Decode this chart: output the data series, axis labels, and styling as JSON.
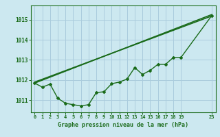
{
  "title": "Graphe pression niveau de la mer (hPa)",
  "background_color": "#cce8f0",
  "grid_color": "#aaccdd",
  "line_color": "#1a6b1a",
  "xlim": [
    -0.5,
    23.5
  ],
  "ylim": [
    1010.4,
    1015.7
  ],
  "xticks": [
    0,
    1,
    2,
    3,
    4,
    5,
    6,
    7,
    8,
    9,
    10,
    11,
    12,
    13,
    14,
    15,
    16,
    17,
    18,
    19,
    23
  ],
  "yticks": [
    1011,
    1012,
    1013,
    1014,
    1015
  ],
  "line1_x": [
    0,
    23
  ],
  "line1_y": [
    1011.85,
    1015.25
  ],
  "line2_x": [
    0,
    23
  ],
  "line2_y": [
    1011.9,
    1015.18
  ],
  "curve_x": [
    0,
    1,
    2,
    3,
    4,
    5,
    6,
    7,
    8,
    9,
    10,
    11,
    12,
    13,
    14,
    15,
    16,
    17,
    18,
    19,
    23
  ],
  "curve_y": [
    1011.85,
    1011.65,
    1011.8,
    1011.1,
    1010.85,
    1010.78,
    1010.72,
    1010.78,
    1011.38,
    1011.42,
    1011.82,
    1011.9,
    1012.05,
    1012.62,
    1012.28,
    1012.48,
    1012.78,
    1012.78,
    1013.12,
    1013.12,
    1015.2
  ]
}
